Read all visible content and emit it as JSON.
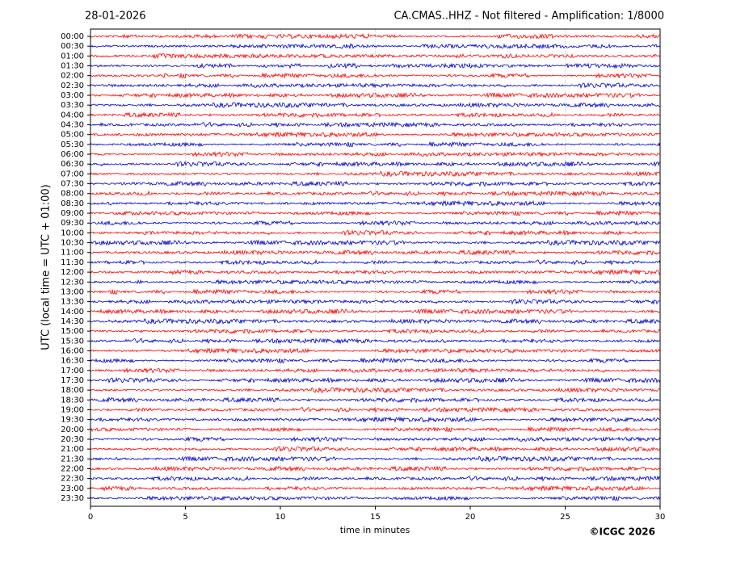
{
  "chart_data": {
    "type": "helicorder",
    "title": "28-01-2026",
    "subtitle": "CA.CMAS..HHZ - Not filtered - Amplification: 1/8000",
    "ylabel": "UTC (local time = UTC + 01:00)",
    "xlabel": "time in minutes",
    "footer": "©ICGC 2026",
    "categories": [
      "00:00",
      "00:30",
      "01:00",
      "01:30",
      "02:00",
      "02:30",
      "03:00",
      "03:30",
      "04:00",
      "04:30",
      "05:00",
      "05:30",
      "06:00",
      "06:30",
      "07:00",
      "07:30",
      "08:00",
      "08:30",
      "09:00",
      "09:30",
      "10:00",
      "10:30",
      "11:00",
      "11:30",
      "12:00",
      "12:30",
      "13:00",
      "13:30",
      "14:00",
      "14:30",
      "15:00",
      "15:30",
      "16:00",
      "16:30",
      "17:00",
      "17:30",
      "18:00",
      "18:30",
      "19:00",
      "19:30",
      "20:00",
      "20:30",
      "21:00",
      "21:30",
      "22:00",
      "22:30",
      "23:00",
      "23:30"
    ],
    "colors": [
      "#ff0000",
      "#0000cc"
    ],
    "xlim": [
      0,
      30
    ],
    "xticks": [
      0,
      5,
      10,
      15,
      20,
      25,
      30
    ],
    "grid": true
  }
}
